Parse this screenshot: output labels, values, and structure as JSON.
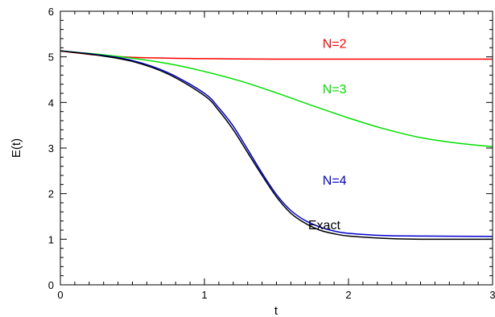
{
  "chart_data": {
    "type": "line",
    "xlabel": "t",
    "ylabel": "E(t)",
    "xlim": [
      0,
      3
    ],
    "ylim": [
      0,
      6
    ],
    "x_ticks": [
      "0",
      "1",
      "2",
      "3"
    ],
    "y_ticks": [
      "0",
      "1",
      "2",
      "3",
      "4",
      "5",
      "6"
    ],
    "grid": false,
    "series": [
      {
        "name": "N=2",
        "color": "#ff0000",
        "label_at": [
          1.82,
          5.2
        ],
        "x": [
          0,
          0.25,
          0.5,
          1.0,
          1.5,
          2.0,
          2.5,
          3.0
        ],
        "y": [
          5.13,
          5.04,
          4.99,
          4.96,
          4.95,
          4.95,
          4.95,
          4.95
        ]
      },
      {
        "name": "N=3",
        "color": "#00e000",
        "label_at": [
          1.82,
          4.2
        ],
        "x": [
          0,
          0.25,
          0.5,
          0.75,
          1.0,
          1.25,
          1.5,
          1.75,
          2.0,
          2.25,
          2.5,
          2.75,
          3.0
        ],
        "y": [
          5.13,
          5.06,
          4.97,
          4.85,
          4.68,
          4.47,
          4.21,
          3.93,
          3.66,
          3.42,
          3.23,
          3.11,
          3.03
        ]
      },
      {
        "name": "N=4",
        "color": "#0000cc",
        "label_at": [
          1.82,
          2.2
        ],
        "x": [
          0,
          0.25,
          0.5,
          0.75,
          1.0,
          1.1,
          1.2,
          1.3,
          1.4,
          1.5,
          1.6,
          1.7,
          1.8,
          1.9,
          2.0,
          2.25,
          2.5,
          3.0
        ],
        "y": [
          5.13,
          5.05,
          4.92,
          4.65,
          4.2,
          3.88,
          3.48,
          2.97,
          2.45,
          1.98,
          1.63,
          1.41,
          1.27,
          1.18,
          1.13,
          1.08,
          1.07,
          1.06
        ]
      },
      {
        "name": "Exact",
        "color": "#000000",
        "label_at": [
          1.72,
          1.22
        ],
        "x": [
          0,
          0.25,
          0.5,
          0.75,
          1.0,
          1.1,
          1.2,
          1.3,
          1.4,
          1.5,
          1.6,
          1.7,
          1.8,
          1.9,
          2.0,
          2.25,
          2.5,
          3.0
        ],
        "y": [
          5.13,
          5.04,
          4.9,
          4.62,
          4.15,
          3.82,
          3.4,
          2.9,
          2.4,
          1.93,
          1.57,
          1.35,
          1.2,
          1.12,
          1.07,
          1.02,
          1.0,
          1.0
        ]
      }
    ]
  }
}
